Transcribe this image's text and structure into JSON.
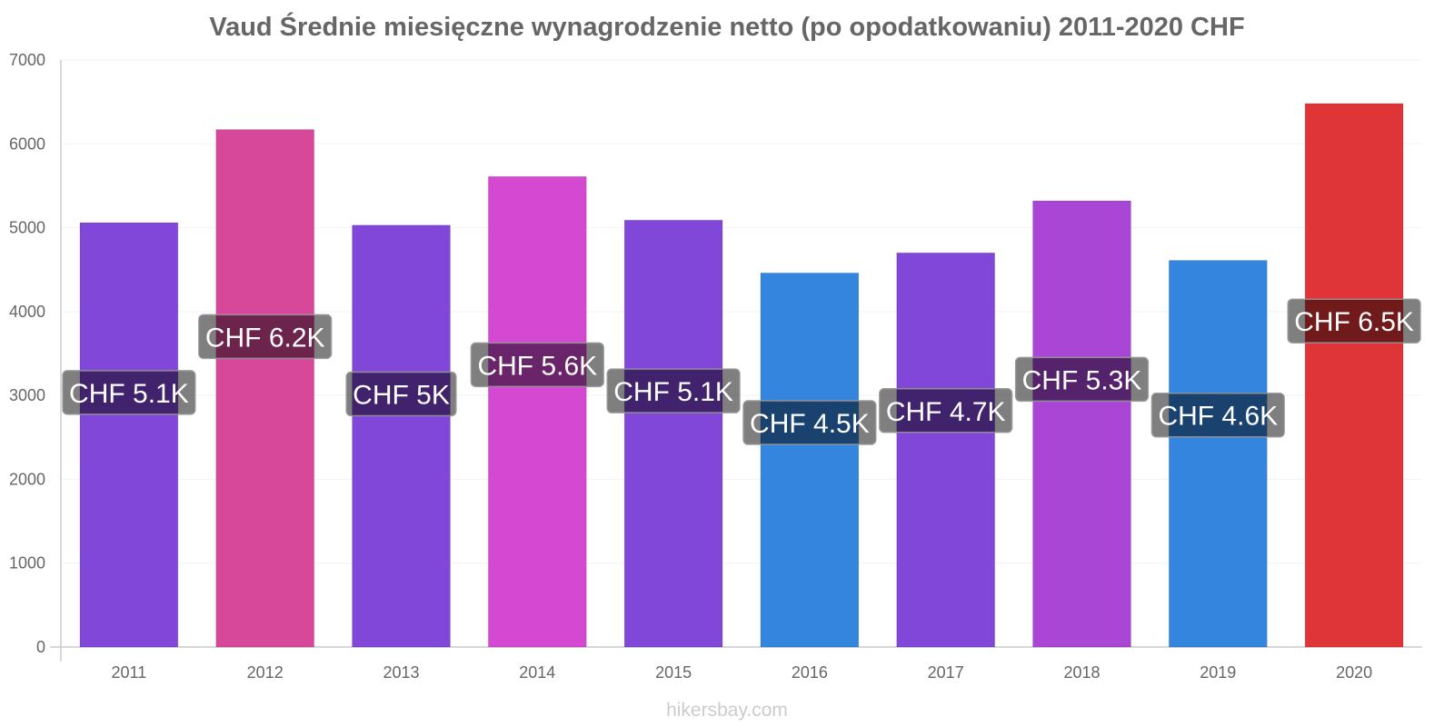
{
  "chart_data": {
    "type": "bar",
    "title": "Vaud Średnie miesięczne wynagrodzenie netto (po opodatkowaniu) 2011-2020 CHF",
    "xlabel": "",
    "ylabel": "",
    "ylim": [
      0,
      7000
    ],
    "yticks": [
      0,
      1000,
      2000,
      3000,
      4000,
      5000,
      6000,
      7000
    ],
    "categories": [
      "2011",
      "2012",
      "2013",
      "2014",
      "2015",
      "2016",
      "2017",
      "2018",
      "2019",
      "2020"
    ],
    "values": [
      5060,
      6170,
      5030,
      5610,
      5090,
      4460,
      4700,
      5320,
      4610,
      6480
    ],
    "labels": [
      "CHF 5.1K",
      "CHF 6.2K",
      "CHF 5K",
      "CHF 5.6K",
      "CHF 5.1K",
      "CHF 4.5K",
      "CHF 4.7K",
      "CHF 5.3K",
      "CHF 4.6K",
      "CHF 6.5K"
    ],
    "colors": [
      "#8047d8",
      "#d8489a",
      "#8047d8",
      "#d549d2",
      "#8047d8",
      "#3485de",
      "#8047d8",
      "#a946d6",
      "#3485de",
      "#e03538"
    ],
    "grid": true,
    "legend": "none"
  },
  "footer": {
    "watermark": "hikersbay.com"
  }
}
